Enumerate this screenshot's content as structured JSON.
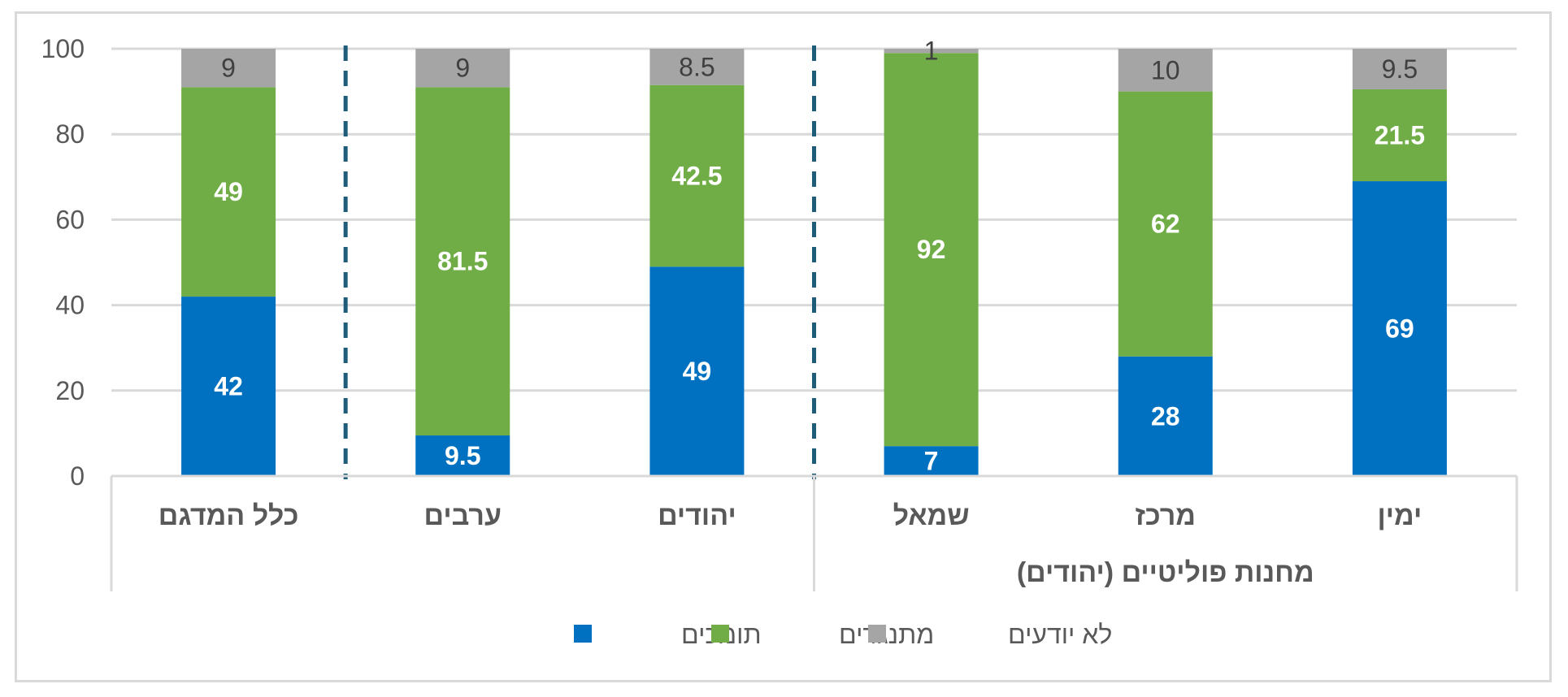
{
  "chart_data": {
    "type": "bar",
    "stacked": true,
    "ylim": [
      0,
      100
    ],
    "yticks": [
      0,
      20,
      40,
      60,
      80,
      100
    ],
    "grid": true,
    "legend_placement": "bottom",
    "categories": [
      "ימין",
      "מרכז",
      "שמאל",
      "יהודים",
      "ערבים",
      "כלל המדגם"
    ],
    "group_label": "מחנות פוליטיים (יהודים)",
    "series": [
      {
        "name": "תומכים",
        "color": "#0070c0",
        "values": [
          69,
          28,
          7,
          49,
          9.5,
          42
        ]
      },
      {
        "name": "מתנגדים",
        "color": "#70ad47",
        "values": [
          21.5,
          62,
          92,
          42.5,
          81.5,
          49
        ]
      },
      {
        "name": "לא יודעים",
        "color": "#a5a5a5",
        "values": [
          9.5,
          10,
          1,
          8.5,
          9,
          9
        ]
      }
    ]
  }
}
